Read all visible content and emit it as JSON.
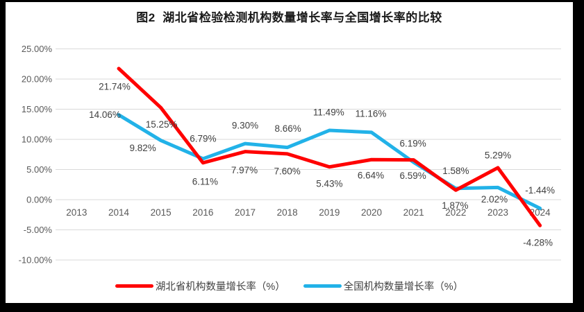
{
  "chart_data": {
    "type": "line",
    "title": "图2  湖北省检验检测机构数量增长率与全国增长率的比较",
    "categories": [
      "2013",
      "2014",
      "2015",
      "2016",
      "2017",
      "2018",
      "2019",
      "2020",
      "2021",
      "2022",
      "2023",
      "2024"
    ],
    "series": [
      {
        "id": "hubei",
        "name": "湖北省机构数量增长率（%）",
        "color": "#FF0000",
        "values": [
          null,
          21.74,
          15.25,
          6.11,
          7.97,
          7.6,
          5.43,
          6.64,
          6.59,
          1.58,
          5.29,
          -4.28
        ],
        "labels": [
          "",
          "21.74%",
          "15.25%",
          "6.11%",
          "7.97%",
          "7.60%",
          "5.43%",
          "6.64%",
          "6.59%",
          "1.58%",
          "5.29%",
          "-4.28%"
        ],
        "label_offsets": [
          null,
          [
            -6,
            26
          ],
          [
            1,
            24
          ],
          [
            3,
            27
          ],
          [
            -1,
            27
          ],
          [
            0,
            25
          ],
          [
            0,
            24
          ],
          [
            -1,
            23
          ],
          [
            -1,
            23
          ],
          [
            0,
            -28
          ],
          [
            0,
            -18
          ],
          [
            -3,
            25
          ]
        ]
      },
      {
        "id": "national",
        "name": "全国机构数量增长率（%）",
        "color": "#22B2E8",
        "values": [
          null,
          14.06,
          9.82,
          6.79,
          9.3,
          8.66,
          11.49,
          11.16,
          6.19,
          1.87,
          2.02,
          -1.44
        ],
        "labels": [
          "",
          "14.06%",
          "9.82%",
          "6.79%",
          "9.30%",
          "8.66%",
          "11.49%",
          "11.16%",
          "6.19%",
          "1.87%",
          "2.02%",
          "-1.44%"
        ],
        "label_offsets": [
          null,
          [
            -20,
            0
          ],
          [
            -26,
            11
          ],
          [
            0,
            -29
          ],
          [
            0,
            -26
          ],
          [
            1,
            -27
          ],
          [
            -1,
            -26
          ],
          [
            -1,
            -27
          ],
          [
            -1,
            -27
          ],
          [
            -1,
            25
          ],
          [
            -5,
            17
          ],
          [
            0,
            -26
          ]
        ]
      }
    ],
    "ylim": [
      -10,
      25
    ],
    "ytick_step": 5,
    "y_tick_values": [
      25,
      20,
      15,
      10,
      5,
      0,
      -5,
      -10
    ],
    "y_tick_labels": [
      "25.00%",
      "20.00%",
      "15.00%",
      "10.00%",
      "5.00%",
      "0.00%",
      "-5.00%",
      "-10.00%"
    ],
    "xlabel": "",
    "ylabel": "",
    "grid": true,
    "legend_position": "bottom",
    "colors": {
      "hubei_red": "#FF0000",
      "national_blue": "#22B2E8",
      "gridline": "#D9D9D9",
      "axis_text": "#595959",
      "data_label": "#404040",
      "title_text": "#1A1A1A",
      "frame": "#000000",
      "background": "#FFFFFF"
    }
  }
}
